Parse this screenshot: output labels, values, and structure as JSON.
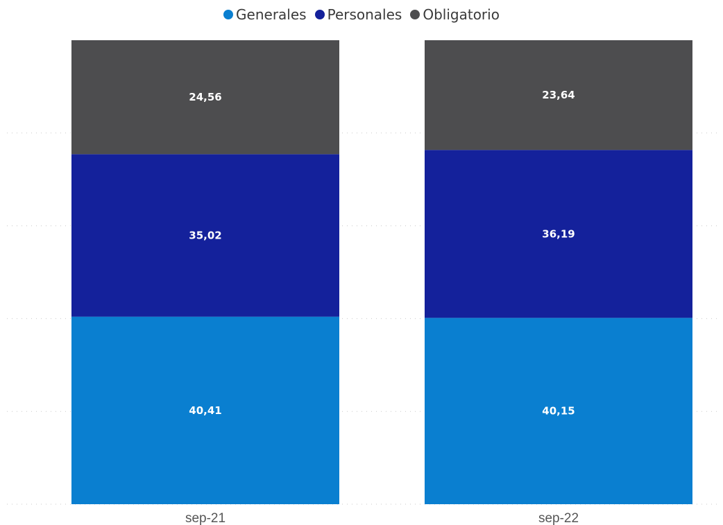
{
  "chart_data": {
    "type": "bar",
    "stacked": true,
    "percent_stacked": true,
    "categories": [
      "sep-21",
      "sep-22"
    ],
    "series": [
      {
        "name": "Generales",
        "values": [
          40.41,
          40.15
        ],
        "labels": [
          "40,41",
          "40,15"
        ],
        "color": "#0a7fd0"
      },
      {
        "name": "Personales",
        "values": [
          35.02,
          36.19
        ],
        "labels": [
          "35,02",
          "36,19"
        ],
        "color": "#14219b"
      },
      {
        "name": "Obligatorio",
        "values": [
          24.56,
          23.64
        ],
        "labels": [
          "24,56",
          "23,64"
        ],
        "color": "#4d4d4f"
      }
    ],
    "ylim": [
      0,
      100
    ],
    "grid": true,
    "legend_position": "top-center",
    "title": "",
    "xlabel": "",
    "ylabel": ""
  }
}
